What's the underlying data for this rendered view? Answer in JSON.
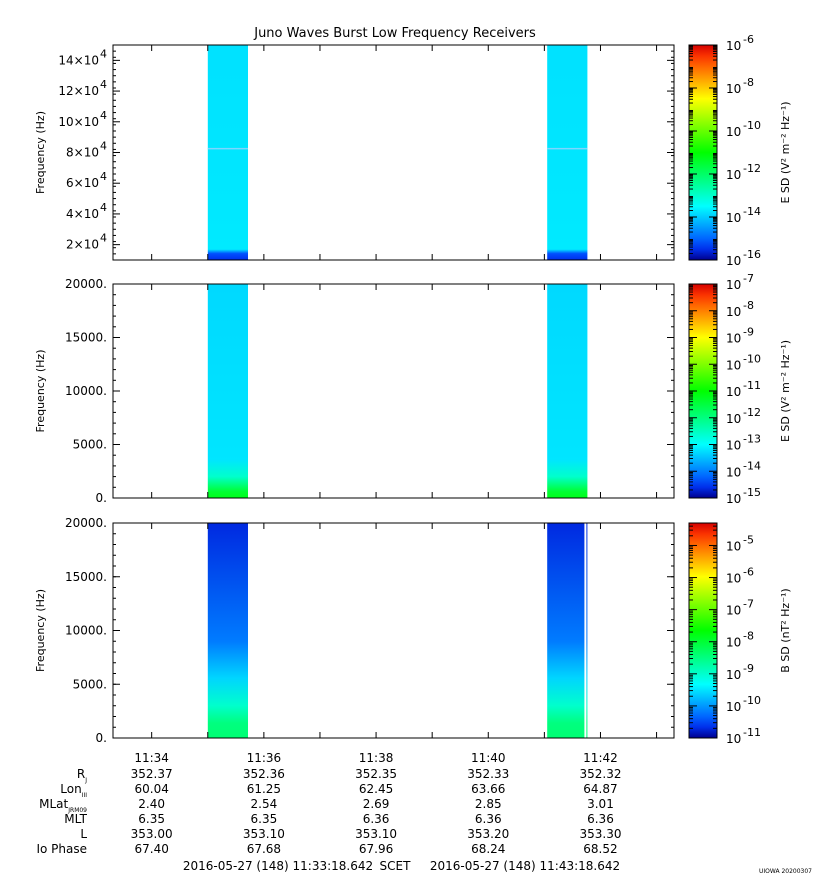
{
  "title": "Juno Waves Burst Low Frequency Receivers",
  "credit": "UIOWA 20200307",
  "time_axis": {
    "tick_labels": [
      "11:34",
      "11:36",
      "11:38",
      "11:40",
      "11:42"
    ],
    "start": "2016-05-27 (148) 11:33:18.642",
    "end": "2016-05-27 (148) 11:43:18.642",
    "scet": "SCET"
  },
  "ephemeris": {
    "labels": [
      "R",
      "Lon",
      "MLat",
      "MLT",
      "L",
      "Io Phase"
    ],
    "subscripts": [
      "J",
      "III",
      "JRM09",
      "",
      "",
      ""
    ],
    "rows": [
      [
        "352.37",
        "352.36",
        "352.35",
        "352.33",
        "352.32"
      ],
      [
        "60.04",
        "61.25",
        "62.45",
        "63.66",
        "64.87"
      ],
      [
        "2.40",
        "2.54",
        "2.69",
        "2.85",
        "3.01"
      ],
      [
        "6.35",
        "6.35",
        "6.36",
        "6.36",
        "6.36"
      ],
      [
        "353.00",
        "353.10",
        "353.10",
        "353.20",
        "353.30"
      ],
      [
        "67.40",
        "67.68",
        "67.96",
        "68.24",
        "68.52"
      ]
    ]
  },
  "chart_data": [
    {
      "type": "heatmap",
      "panel": "top",
      "ylabel": "Frequency (Hz)",
      "y_tick_labels": [
        "2×10",
        "4×10",
        "6×10",
        "8×10",
        "10×10",
        "12×10",
        "14×10"
      ],
      "y_tick_exponent": "4",
      "ytick_values": [
        20000,
        40000,
        60000,
        80000,
        100000,
        120000,
        140000
      ],
      "ylim": [
        10000,
        150000
      ],
      "colorbar_label": "E SD (V² m⁻² Hz⁻¹)",
      "colorbar_ticks": [
        -6,
        -8,
        -10,
        -12,
        -14,
        -16
      ],
      "colorbar_range": [
        -16,
        -6
      ],
      "bursts": [
        {
          "start": "11:35:00",
          "end": "11:35:43",
          "level": -13.8
        },
        {
          "start": "11:41:03",
          "end": "11:41:46",
          "level": -13.8
        }
      ]
    },
    {
      "type": "heatmap",
      "panel": "middle",
      "ylabel": "Frequency (Hz)",
      "y_tick_labels": [
        "0.",
        "5000.",
        "10000.",
        "15000.",
        "20000."
      ],
      "ytick_values": [
        0,
        5000,
        10000,
        15000,
        20000
      ],
      "ylim": [
        0,
        20000
      ],
      "colorbar_label": "E SD (V² m⁻² Hz⁻¹)",
      "colorbar_ticks": [
        -7,
        -8,
        -9,
        -10,
        -11,
        -12,
        -13,
        -14,
        -15
      ],
      "colorbar_range": [
        -15,
        -7
      ],
      "bursts": [
        {
          "start": "11:35:00",
          "end": "11:35:43",
          "level": -13.3
        },
        {
          "start": "11:41:03",
          "end": "11:41:46",
          "level": -13.3
        }
      ]
    },
    {
      "type": "heatmap",
      "panel": "bottom",
      "ylabel": "Frequency (Hz)",
      "y_tick_labels": [
        "0.",
        "5000.",
        "10000.",
        "15000.",
        "20000."
      ],
      "ytick_values": [
        0,
        5000,
        10000,
        15000,
        20000
      ],
      "ylim": [
        0,
        20000
      ],
      "colorbar_label": "B SD (nT² Hz⁻¹)",
      "colorbar_ticks": [
        -5,
        -6,
        -7,
        -8,
        -9,
        -10,
        -11
      ],
      "colorbar_range": [
        -11,
        -4.3
      ],
      "bursts": [
        {
          "start": "11:35:00",
          "end": "11:35:43",
          "level": -10.6
        },
        {
          "start": "11:41:03",
          "end": "11:41:46",
          "level": -10.6
        }
      ]
    }
  ]
}
